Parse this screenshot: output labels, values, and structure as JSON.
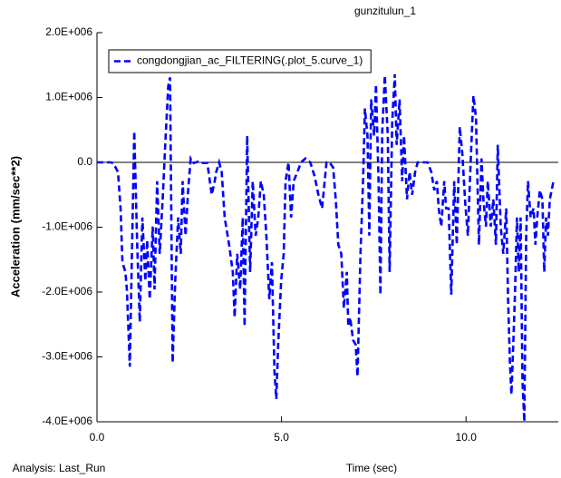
{
  "chart_data": {
    "type": "line",
    "title": "gunzitulun_1",
    "xlabel": "Time (sec)",
    "ylabel": "Acceleration (mm/sec**2)",
    "annotation": "Analysis: Last_Run",
    "legend": "upper left",
    "line_style": "dashed",
    "xlim": [
      0,
      12.5
    ],
    "ylim": [
      -4000000,
      2000000
    ],
    "xticks": [
      {
        "value": 0,
        "label": "0.0"
      },
      {
        "value": 5,
        "label": "5.0"
      },
      {
        "value": 10,
        "label": "10.0"
      }
    ],
    "yticks": [
      {
        "value": 2000000,
        "label": "2.0E+006"
      },
      {
        "value": 1000000,
        "label": "1.0E+006"
      },
      {
        "value": 0,
        "label": "0.0"
      },
      {
        "value": -1000000,
        "label": "-1.0E+006"
      },
      {
        "value": -2000000,
        "label": "-2.0E+006"
      },
      {
        "value": -3000000,
        "label": "-3.0E+006"
      },
      {
        "value": -4000000,
        "label": "-4.0E+006"
      }
    ],
    "x": [
      0,
      0.37,
      0.44,
      0.57,
      0.64,
      0.69,
      0.77,
      0.81,
      0.89,
      1.01,
      1.09,
      1.16,
      1.23,
      1.31,
      1.36,
      1.43,
      1.51,
      1.56,
      1.63,
      1.7,
      1.78,
      1.85,
      1.93,
      1.98,
      2.05,
      2.12,
      2.2,
      2.27,
      2.32,
      2.4,
      2.47,
      2.54,
      2.62,
      2.74,
      2.84,
      2.99,
      3.11,
      3.19,
      3.23,
      3.31,
      3.38,
      3.46,
      3.58,
      3.68,
      3.73,
      3.8,
      3.88,
      3.95,
      4.0,
      4.07,
      4.15,
      4.22,
      4.3,
      4.37,
      4.44,
      4.52,
      4.59,
      4.67,
      4.74,
      4.81,
      4.86,
      4.91,
      4.99,
      5.06,
      5.11,
      5.19,
      5.26,
      5.33,
      5.43,
      5.53,
      5.65,
      5.78,
      5.9,
      6.0,
      6.1,
      6.17,
      6.22,
      6.3,
      6.4,
      6.47,
      6.54,
      6.62,
      6.69,
      6.77,
      6.81,
      6.86,
      6.94,
      7.01,
      7.06,
      7.14,
      7.21,
      7.26,
      7.33,
      7.38,
      7.43,
      7.51,
      7.56,
      7.63,
      7.68,
      7.73,
      7.8,
      7.88,
      7.93,
      8.0,
      8.07,
      8.12,
      8.2,
      8.27,
      8.32,
      8.4,
      8.47,
      8.54,
      8.62,
      8.69,
      8.81,
      8.96,
      9.06,
      9.14,
      9.21,
      9.26,
      9.33,
      9.41,
      9.46,
      9.53,
      9.6,
      9.68,
      9.75,
      9.83,
      9.9,
      9.98,
      10.05,
      10.12,
      10.2,
      10.27,
      10.35,
      10.42,
      10.47,
      10.54,
      10.59,
      10.67,
      10.74,
      10.81,
      10.86,
      10.94,
      11.01,
      11.09,
      11.14,
      11.19,
      11.23,
      11.28,
      11.33,
      11.38,
      11.43,
      11.48,
      11.53,
      11.58,
      11.63,
      11.68,
      11.75,
      11.83,
      11.88,
      11.93,
      12.0,
      12.07,
      12.12,
      12.17,
      12.22,
      12.27,
      12.37
    ],
    "series": [
      {
        "name": "congdongjian_ac_FILTERING(.plot_5.curve_1)",
        "color": "#0000ff",
        "values": [
          0,
          0,
          -10000,
          -150000,
          -710000,
          -1540000,
          -1690000,
          -1960000,
          -3150000,
          480000,
          -1270000,
          -2460000,
          -850000,
          -1830000,
          -1200000,
          -2110000,
          -990000,
          -1960000,
          -290000,
          -1410000,
          -570000,
          270000,
          1170000,
          1310000,
          -3090000,
          -1830000,
          -850000,
          -1410000,
          -290000,
          -1130000,
          -430000,
          60000,
          -10000,
          10000,
          -10000,
          -10000,
          -500000,
          -290000,
          -150000,
          0,
          -150000,
          -850000,
          -1270000,
          -1690000,
          -2390000,
          -1410000,
          -1960000,
          -850000,
          -2530000,
          410000,
          -1690000,
          -290000,
          -1130000,
          -850000,
          -290000,
          -500000,
          -1130000,
          -2110000,
          -1540000,
          -3230000,
          -3650000,
          -2810000,
          -1830000,
          -1410000,
          -290000,
          0,
          -850000,
          -290000,
          -150000,
          0,
          60000,
          0,
          -220000,
          -500000,
          -710000,
          -290000,
          0,
          0,
          -80000,
          -570000,
          -1270000,
          -1410000,
          -2250000,
          -1690000,
          -2530000,
          -2390000,
          -2740000,
          -2810000,
          -3300000,
          -1410000,
          -290000,
          830000,
          410000,
          -1130000,
          970000,
          410000,
          1200000,
          -290000,
          -2040000,
          480000,
          1340000,
          410000,
          -1690000,
          620000,
          1360000,
          270000,
          970000,
          -290000,
          410000,
          -570000,
          -150000,
          -500000,
          -150000,
          0,
          0,
          0,
          -150000,
          -430000,
          -290000,
          -710000,
          -990000,
          -290000,
          -710000,
          -710000,
          -2040000,
          -290000,
          -1270000,
          550000,
          130000,
          -640000,
          -1130000,
          -80000,
          1030000,
          690000,
          -1270000,
          60000,
          -570000,
          -990000,
          -290000,
          -990000,
          -570000,
          -1270000,
          270000,
          -990000,
          -1410000,
          -710000,
          -2110000,
          -3090000,
          -3580000,
          -2810000,
          -1970000,
          -850000,
          -1690000,
          -850000,
          -3370000,
          -4000000,
          -1130000,
          -290000,
          -850000,
          -710000,
          -1270000,
          -850000,
          -430000,
          -570000,
          -1690000,
          -850000,
          -1130000,
          -570000,
          -290000
        ]
      }
    ]
  }
}
